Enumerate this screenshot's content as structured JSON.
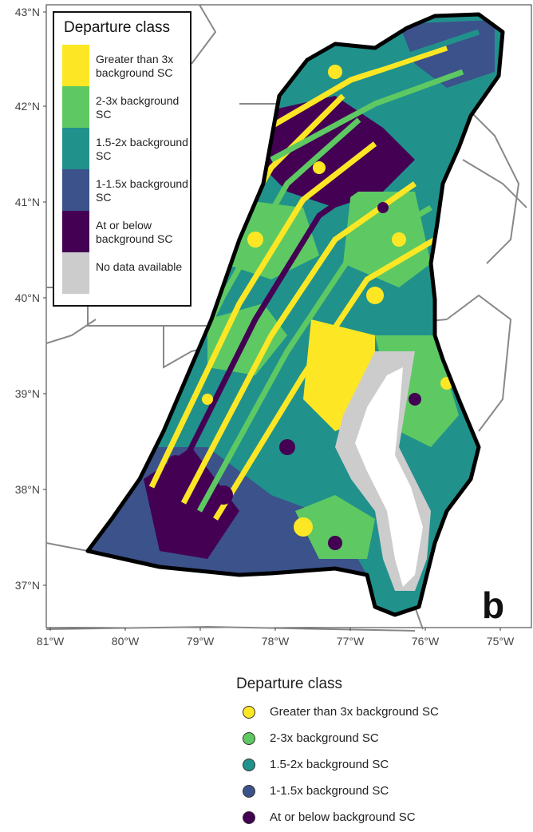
{
  "panel_label": "b",
  "latitude_ticks": [
    "43°N",
    "42°N",
    "41°N",
    "40°N",
    "39°N",
    "38°N",
    "37°N"
  ],
  "longitude_ticks": [
    "81°W",
    "80°W",
    "79°W",
    "78°W",
    "77°W",
    "76°W",
    "75°W"
  ],
  "legend": {
    "title": "Departure class",
    "inset_items": [
      {
        "label": "Greater than 3x background SC",
        "color": "#fde725"
      },
      {
        "label": "2-3x background SC",
        "color": "#5ec962"
      },
      {
        "label": "1.5-2x background SC",
        "color": "#21918c"
      },
      {
        "label": "1-1.5x background SC",
        "color": "#3b528b"
      },
      {
        "label": "At or below background SC",
        "color": "#440154"
      },
      {
        "label": "No data available",
        "color": "#cccccc"
      }
    ],
    "bottom_items": [
      {
        "label": "Greater than 3x background SC",
        "color": "#fde725"
      },
      {
        "label": "2-3x background SC",
        "color": "#5ec962"
      },
      {
        "label": "1.5-2x background SC",
        "color": "#21918c"
      },
      {
        "label": "1-1.5x background SC",
        "color": "#3b528b"
      },
      {
        "label": "At or below background SC",
        "color": "#440154"
      }
    ]
  }
}
